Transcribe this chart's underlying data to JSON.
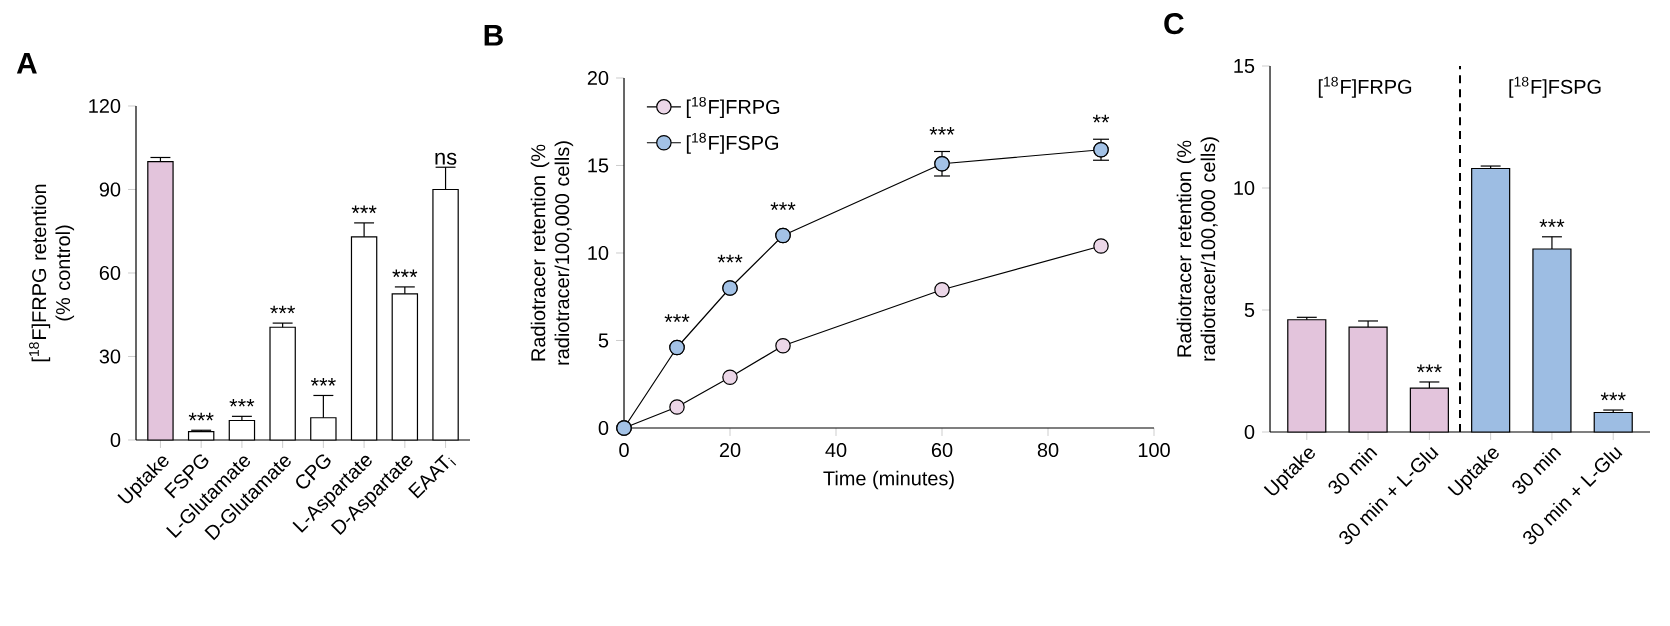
{
  "chart_data": [
    {
      "type": "bar",
      "title": "A",
      "ylabel": "[$^{18}$F]FRPG retention (% control)",
      "categories": [
        "Uptake",
        "FSPG",
        "L-Glutamate",
        "D-Glutamate",
        "CPG",
        "L-Aspartate",
        "D-Aspartate",
        "EAAT$_{i}$"
      ],
      "values": [
        100,
        3,
        7,
        40.5,
        8,
        73,
        52.5,
        90
      ],
      "errors": [
        1.5,
        0.5,
        1.5,
        1.5,
        8,
        5,
        2.5,
        8
      ],
      "colors": [
        "#e3c4dc",
        "#ffffff",
        "#ffffff",
        "#ffffff",
        "#ffffff",
        "#ffffff",
        "#ffffff",
        "#ffffff"
      ],
      "ylim": [
        0,
        120
      ],
      "yticks": [
        0,
        30,
        60,
        90,
        120
      ],
      "annotations": [
        {
          "text": "***",
          "x": "FSPG",
          "y": 3.5
        },
        {
          "text": "***",
          "x": "L-Glutamate",
          "y": 8.5
        },
        {
          "text": "***",
          "x": "D-Glutamate",
          "y": 42
        },
        {
          "text": "***",
          "x": "CPG",
          "y": 16
        },
        {
          "text": "***",
          "x": "L-Aspartate",
          "y": 78
        },
        {
          "text": "***",
          "x": "D-Aspartate",
          "y": 55
        },
        {
          "text": "ns",
          "x": "EAAT$_{i}$",
          "y": 98
        }
      ]
    },
    {
      "type": "line",
      "title": "B",
      "xlabel": "Time (minutes)",
      "ylabel": "Radiotracer retention (% radiotracer/100,000 cells)",
      "x": [
        0,
        10,
        20,
        30,
        60,
        90
      ],
      "series": [
        {
          "name": "[$^{18}$F]FRPG",
          "color": "#ecd7e8",
          "values": [
            0,
            1.2,
            2.9,
            4.7,
            7.9,
            10.4
          ]
        },
        {
          "name": "[$^{18}$F]FSPG",
          "color": "#a3c2e6",
          "values": [
            0,
            4.6,
            8,
            11,
            15.1,
            15.9
          ],
          "errors": [
            null,
            null,
            null,
            null,
            0.7,
            0.6
          ]
        }
      ],
      "xlim": [
        0,
        100
      ],
      "xticks": [
        0,
        20,
        40,
        60,
        80,
        100
      ],
      "ylim": [
        0,
        20
      ],
      "yticks": [
        0,
        5,
        10,
        15,
        20
      ],
      "marker": "circle",
      "legend": "top left",
      "annotations": [
        {
          "text": "***",
          "x": 10,
          "y": 5.5
        },
        {
          "text": "***",
          "x": 20,
          "y": 8.9
        },
        {
          "text": "***",
          "x": 30,
          "y": 11.9
        },
        {
          "text": "***",
          "x": 60,
          "y": 16.2
        },
        {
          "text": "**",
          "x": 90,
          "y": 16.9
        }
      ]
    },
    {
      "type": "bar",
      "title": "C",
      "ylabel": "Radiotracer retention (% radiotracer/100,000 cells)",
      "categories": [
        "Uptake",
        "30 min",
        "30 min + L-Glu",
        "Uptake",
        "30 min",
        "30 min + L-Glu"
      ],
      "values": [
        4.6,
        4.3,
        1.8,
        10.8,
        7.5,
        0.8
      ],
      "errors": [
        0.1,
        0.25,
        0.25,
        0.1,
        0.5,
        0.1
      ],
      "colors": [
        "#e3c4dc",
        "#e3c4dc",
        "#e3c4dc",
        "#9dbde3",
        "#9dbde3",
        "#9dbde3"
      ],
      "ylim": [
        0,
        15
      ],
      "yticks": [
        0,
        5,
        10,
        15
      ],
      "value_labels": [
        null,
        null,
        "***",
        null,
        "***",
        "***"
      ],
      "annotations": [
        "[$^{18}$F]FRPG",
        "[$^{18}$F]FSPG"
      ]
    }
  ]
}
